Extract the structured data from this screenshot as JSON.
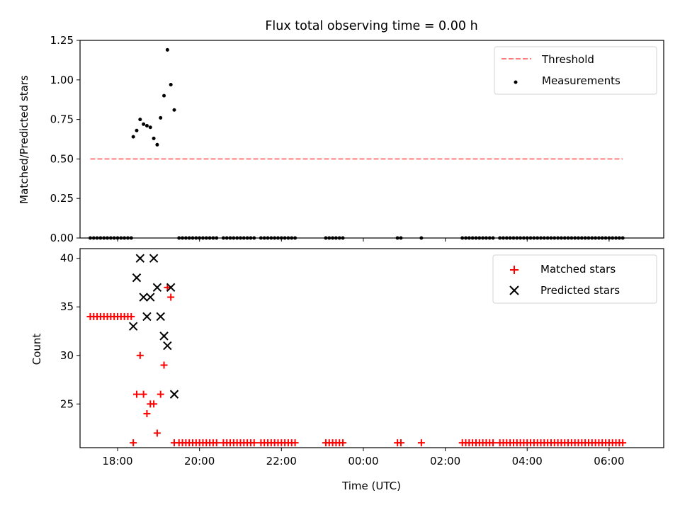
{
  "figure": {
    "title": "Flux total observing time = 0.00 h",
    "xlabel": "Time (UTC)"
  },
  "chart_data": [
    {
      "type": "scatter",
      "ylabel": "Matched/Predicted stars",
      "ylim": [
        0,
        1.25
      ],
      "yticks": [
        "0.00",
        "0.25",
        "0.50",
        "0.75",
        "1.00",
        "1.25"
      ],
      "xlim": [
        "17:05",
        "07:20"
      ],
      "xticks": [],
      "legend_position": "top-right",
      "series": [
        {
          "name": "Threshold",
          "kind": "dashed-line",
          "color": "#ff7f7f",
          "points": [
            [
              "17:20",
              0.5
            ],
            [
              "06:20",
              0.5
            ]
          ]
        },
        {
          "name": "Measurements",
          "kind": "dots",
          "color": "#000000",
          "points": [
            [
              "17:20",
              0
            ],
            [
              "17:25",
              0
            ],
            [
              "17:30",
              0
            ],
            [
              "17:35",
              0
            ],
            [
              "17:40",
              0
            ],
            [
              "17:45",
              0
            ],
            [
              "17:50",
              0
            ],
            [
              "17:55",
              0
            ],
            [
              "18:00",
              0
            ],
            [
              "18:05",
              0
            ],
            [
              "18:10",
              0
            ],
            [
              "18:15",
              0
            ],
            [
              "18:20",
              0
            ],
            [
              "18:23",
              0.64
            ],
            [
              "18:28",
              0.68
            ],
            [
              "18:33",
              0.75
            ],
            [
              "18:38",
              0.72
            ],
            [
              "18:43",
              0.71
            ],
            [
              "18:48",
              0.7
            ],
            [
              "18:53",
              0.63
            ],
            [
              "18:58",
              0.59
            ],
            [
              "19:03",
              0.76
            ],
            [
              "19:08",
              0.9
            ],
            [
              "19:13",
              1.19
            ],
            [
              "19:18",
              0.97
            ],
            [
              "19:23",
              0.81
            ],
            [
              "19:30",
              0
            ],
            [
              "19:35",
              0
            ],
            [
              "19:40",
              0
            ],
            [
              "19:45",
              0
            ],
            [
              "19:50",
              0
            ],
            [
              "19:55",
              0
            ],
            [
              "20:00",
              0
            ],
            [
              "20:05",
              0
            ],
            [
              "20:10",
              0
            ],
            [
              "20:15",
              0
            ],
            [
              "20:20",
              0
            ],
            [
              "20:25",
              0
            ],
            [
              "20:35",
              0
            ],
            [
              "20:40",
              0
            ],
            [
              "20:45",
              0
            ],
            [
              "20:50",
              0
            ],
            [
              "20:55",
              0
            ],
            [
              "21:00",
              0
            ],
            [
              "21:05",
              0
            ],
            [
              "21:10",
              0
            ],
            [
              "21:15",
              0
            ],
            [
              "21:20",
              0
            ],
            [
              "21:30",
              0
            ],
            [
              "21:35",
              0
            ],
            [
              "21:40",
              0
            ],
            [
              "21:45",
              0
            ],
            [
              "21:50",
              0
            ],
            [
              "21:55",
              0
            ],
            [
              "22:00",
              0
            ],
            [
              "22:05",
              0
            ],
            [
              "22:10",
              0
            ],
            [
              "22:15",
              0
            ],
            [
              "22:20",
              0
            ],
            [
              "23:05",
              0
            ],
            [
              "23:10",
              0
            ],
            [
              "23:15",
              0
            ],
            [
              "23:20",
              0
            ],
            [
              "23:25",
              0
            ],
            [
              "23:30",
              0
            ],
            [
              "00:50",
              0
            ],
            [
              "00:55",
              0
            ],
            [
              "01:25",
              0
            ],
            [
              "02:25",
              0
            ],
            [
              "02:30",
              0
            ],
            [
              "02:35",
              0
            ],
            [
              "02:40",
              0
            ],
            [
              "02:45",
              0
            ],
            [
              "02:50",
              0
            ],
            [
              "02:55",
              0
            ],
            [
              "03:00",
              0
            ],
            [
              "03:05",
              0
            ],
            [
              "03:10",
              0
            ],
            [
              "03:20",
              0
            ],
            [
              "03:25",
              0
            ],
            [
              "03:30",
              0
            ],
            [
              "03:35",
              0
            ],
            [
              "03:40",
              0
            ],
            [
              "03:45",
              0
            ],
            [
              "03:50",
              0
            ],
            [
              "03:55",
              0
            ],
            [
              "04:00",
              0
            ],
            [
              "04:05",
              0
            ],
            [
              "04:10",
              0
            ],
            [
              "04:15",
              0
            ],
            [
              "04:20",
              0
            ],
            [
              "04:25",
              0
            ],
            [
              "04:30",
              0
            ],
            [
              "04:35",
              0
            ],
            [
              "04:40",
              0
            ],
            [
              "04:45",
              0
            ],
            [
              "04:50",
              0
            ],
            [
              "04:55",
              0
            ],
            [
              "05:00",
              0
            ],
            [
              "05:05",
              0
            ],
            [
              "05:10",
              0
            ],
            [
              "05:15",
              0
            ],
            [
              "05:20",
              0
            ],
            [
              "05:25",
              0
            ],
            [
              "05:30",
              0
            ],
            [
              "05:35",
              0
            ],
            [
              "05:40",
              0
            ],
            [
              "05:45",
              0
            ],
            [
              "05:50",
              0
            ],
            [
              "05:55",
              0
            ],
            [
              "06:00",
              0
            ],
            [
              "06:05",
              0
            ],
            [
              "06:10",
              0
            ],
            [
              "06:15",
              0
            ],
            [
              "06:20",
              0
            ]
          ]
        }
      ]
    },
    {
      "type": "scatter",
      "ylabel": "Count",
      "ylim": [
        20.5,
        41
      ],
      "yticks": [
        "25",
        "30",
        "35",
        "40"
      ],
      "xlim": [
        "17:05",
        "07:20"
      ],
      "xticks": [
        "18:00",
        "20:00",
        "22:00",
        "00:00",
        "02:00",
        "04:00",
        "06:00"
      ],
      "legend_position": "top-right",
      "series": [
        {
          "name": "Matched stars",
          "kind": "plus",
          "color": "#ff0000",
          "points": [
            [
              "17:20",
              34
            ],
            [
              "17:25",
              34
            ],
            [
              "17:30",
              34
            ],
            [
              "17:35",
              34
            ],
            [
              "17:40",
              34
            ],
            [
              "17:45",
              34
            ],
            [
              "17:50",
              34
            ],
            [
              "17:55",
              34
            ],
            [
              "18:00",
              34
            ],
            [
              "18:05",
              34
            ],
            [
              "18:10",
              34
            ],
            [
              "18:15",
              34
            ],
            [
              "18:20",
              34
            ],
            [
              "18:23",
              21
            ],
            [
              "18:28",
              26
            ],
            [
              "18:33",
              30
            ],
            [
              "18:38",
              26
            ],
            [
              "18:43",
              24
            ],
            [
              "18:48",
              25
            ],
            [
              "18:53",
              25
            ],
            [
              "18:58",
              22
            ],
            [
              "19:03",
              26
            ],
            [
              "19:08",
              29
            ],
            [
              "19:13",
              37
            ],
            [
              "19:18",
              36
            ],
            [
              "19:23",
              21
            ],
            [
              "19:30",
              21
            ],
            [
              "19:35",
              21
            ],
            [
              "19:40",
              21
            ],
            [
              "19:45",
              21
            ],
            [
              "19:50",
              21
            ],
            [
              "19:55",
              21
            ],
            [
              "20:00",
              21
            ],
            [
              "20:05",
              21
            ],
            [
              "20:10",
              21
            ],
            [
              "20:15",
              21
            ],
            [
              "20:20",
              21
            ],
            [
              "20:25",
              21
            ],
            [
              "20:35",
              21
            ],
            [
              "20:40",
              21
            ],
            [
              "20:45",
              21
            ],
            [
              "20:50",
              21
            ],
            [
              "20:55",
              21
            ],
            [
              "21:00",
              21
            ],
            [
              "21:05",
              21
            ],
            [
              "21:10",
              21
            ],
            [
              "21:15",
              21
            ],
            [
              "21:20",
              21
            ],
            [
              "21:30",
              21
            ],
            [
              "21:35",
              21
            ],
            [
              "21:40",
              21
            ],
            [
              "21:45",
              21
            ],
            [
              "21:50",
              21
            ],
            [
              "21:55",
              21
            ],
            [
              "22:00",
              21
            ],
            [
              "22:05",
              21
            ],
            [
              "22:10",
              21
            ],
            [
              "22:15",
              21
            ],
            [
              "22:20",
              21
            ],
            [
              "23:05",
              21
            ],
            [
              "23:10",
              21
            ],
            [
              "23:15",
              21
            ],
            [
              "23:20",
              21
            ],
            [
              "23:25",
              21
            ],
            [
              "23:30",
              21
            ],
            [
              "00:50",
              21
            ],
            [
              "00:55",
              21
            ],
            [
              "01:25",
              21
            ],
            [
              "02:25",
              21
            ],
            [
              "02:30",
              21
            ],
            [
              "02:35",
              21
            ],
            [
              "02:40",
              21
            ],
            [
              "02:45",
              21
            ],
            [
              "02:50",
              21
            ],
            [
              "02:55",
              21
            ],
            [
              "03:00",
              21
            ],
            [
              "03:05",
              21
            ],
            [
              "03:10",
              21
            ],
            [
              "03:20",
              21
            ],
            [
              "03:25",
              21
            ],
            [
              "03:30",
              21
            ],
            [
              "03:35",
              21
            ],
            [
              "03:40",
              21
            ],
            [
              "03:45",
              21
            ],
            [
              "03:50",
              21
            ],
            [
              "03:55",
              21
            ],
            [
              "04:00",
              21
            ],
            [
              "04:05",
              21
            ],
            [
              "04:10",
              21
            ],
            [
              "04:15",
              21
            ],
            [
              "04:20",
              21
            ],
            [
              "04:25",
              21
            ],
            [
              "04:30",
              21
            ],
            [
              "04:35",
              21
            ],
            [
              "04:40",
              21
            ],
            [
              "04:45",
              21
            ],
            [
              "04:50",
              21
            ],
            [
              "04:55",
              21
            ],
            [
              "05:00",
              21
            ],
            [
              "05:05",
              21
            ],
            [
              "05:10",
              21
            ],
            [
              "05:15",
              21
            ],
            [
              "05:20",
              21
            ],
            [
              "05:25",
              21
            ],
            [
              "05:30",
              21
            ],
            [
              "05:35",
              21
            ],
            [
              "05:40",
              21
            ],
            [
              "05:45",
              21
            ],
            [
              "05:50",
              21
            ],
            [
              "05:55",
              21
            ],
            [
              "06:00",
              21
            ],
            [
              "06:05",
              21
            ],
            [
              "06:10",
              21
            ],
            [
              "06:15",
              21
            ],
            [
              "06:20",
              21
            ]
          ]
        },
        {
          "name": "Predicted stars",
          "kind": "x",
          "color": "#000000",
          "points": [
            [
              "18:23",
              33
            ],
            [
              "18:28",
              38
            ],
            [
              "18:33",
              40
            ],
            [
              "18:38",
              36
            ],
            [
              "18:43",
              34
            ],
            [
              "18:48",
              36
            ],
            [
              "18:53",
              40
            ],
            [
              "18:58",
              37
            ],
            [
              "19:03",
              34
            ],
            [
              "19:08",
              32
            ],
            [
              "19:13",
              31
            ],
            [
              "19:18",
              37
            ],
            [
              "19:23",
              26
            ]
          ]
        }
      ]
    }
  ]
}
